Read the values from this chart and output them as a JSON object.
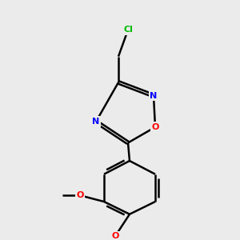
{
  "bg_color": "#ebebeb",
  "bond_color": "#000000",
  "atom_colors": {
    "Cl": "#00bb00",
    "N": "#0000ff",
    "O": "#ff0000",
    "C": "#000000"
  },
  "bond_width": 1.8,
  "figsize": [
    3.0,
    3.0
  ],
  "dpi": 100,
  "font_size": 8
}
